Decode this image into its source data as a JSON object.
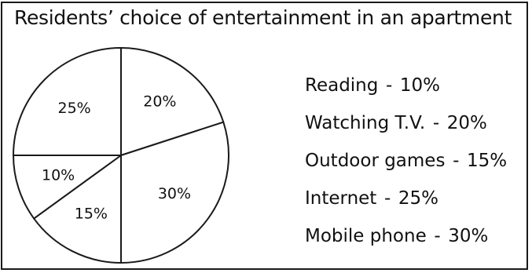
{
  "chart_data": {
    "type": "pie",
    "title": "Residents’ choice of entertainment in an apartment",
    "slices": [
      {
        "name": "Watching T.V.",
        "value": 20,
        "label": "20%"
      },
      {
        "name": "Mobile phone",
        "value": 30,
        "label": "30%"
      },
      {
        "name": "Outdoor games",
        "value": 15,
        "label": "15%"
      },
      {
        "name": "Reading",
        "value": 10,
        "label": "10%"
      },
      {
        "name": "Internet",
        "value": 25,
        "label": "25%"
      }
    ],
    "legend": [
      {
        "name": "Reading",
        "value": "10%"
      },
      {
        "name": "Watching T.V.",
        "value": "20%"
      },
      {
        "name": "Outdoor games",
        "value": "15%"
      },
      {
        "name": "Internet",
        "value": "25%"
      },
      {
        "name": "Mobile phone",
        "value": "30%"
      }
    ],
    "legend_separator": "-",
    "legend_placement": "right",
    "colors": {
      "fill": "#ffffff",
      "stroke": "#1a1a1a",
      "text": "#111111"
    }
  }
}
